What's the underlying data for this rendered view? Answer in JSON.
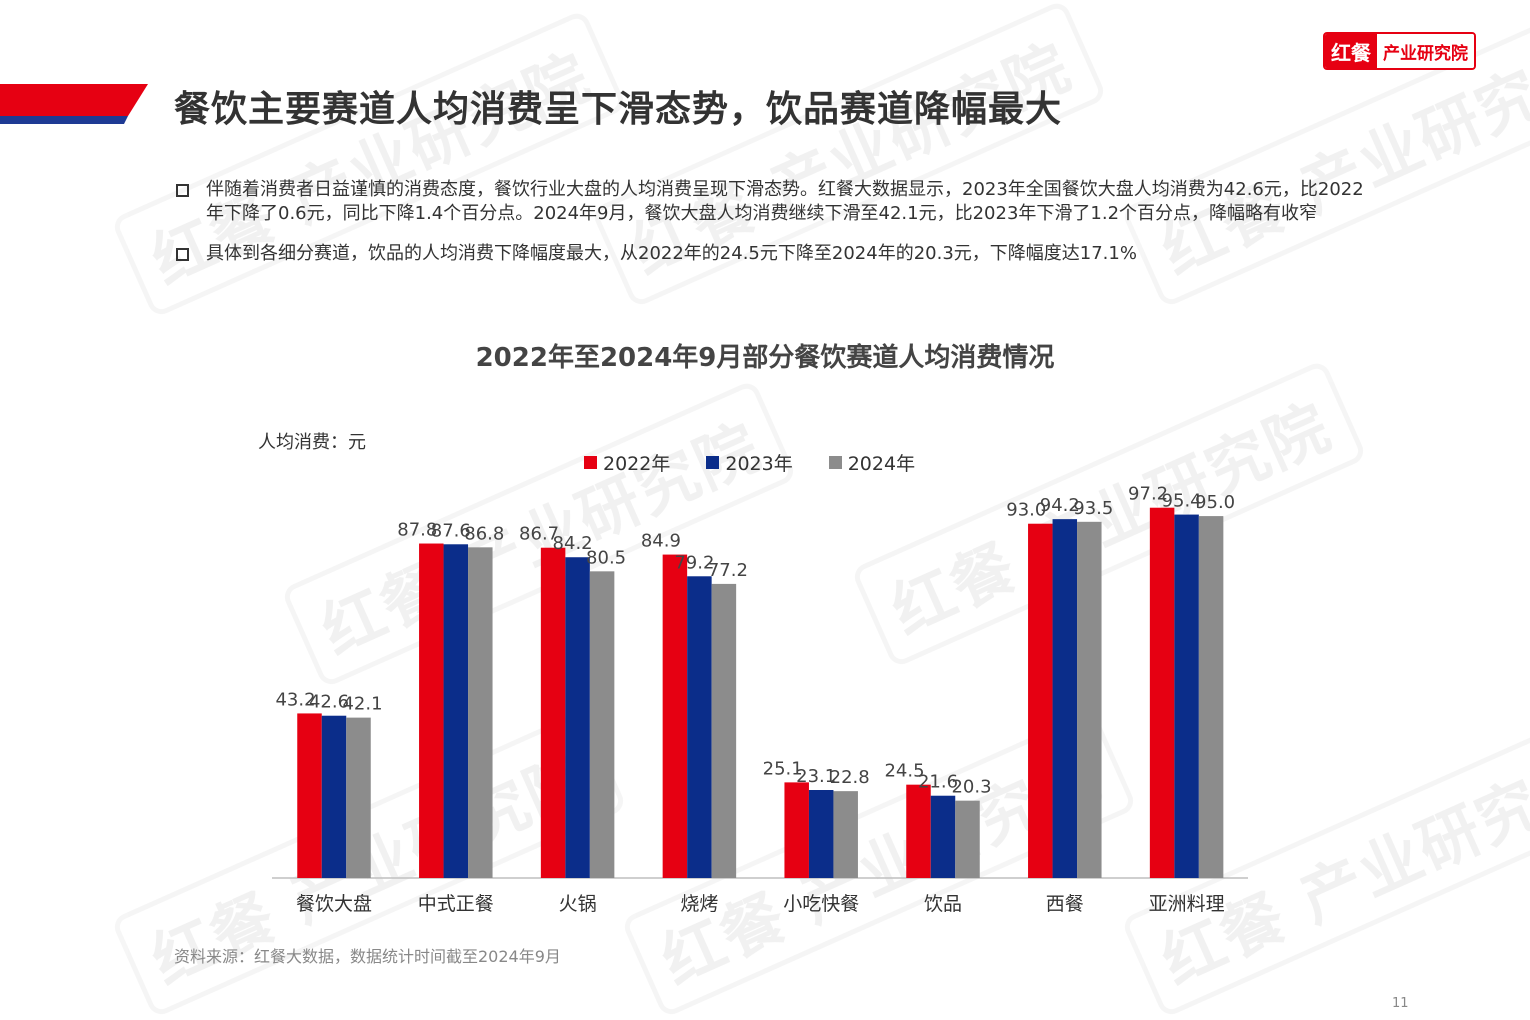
{
  "logo": {
    "brand": "红餐",
    "text": "产业研究院"
  },
  "watermark": "红餐 产业研究院",
  "title": "餐饮主要赛道人均消费呈下滑态势，饮品赛道降幅最大",
  "bullets": [
    "伴随着消费者日益谨慎的消费态度，餐饮行业大盘的人均消费呈现下滑态势。红餐大数据显示，2023年全国餐饮大盘人均消费为42.6元，比2022年下降了0.6元，同比下降1.4个百分点。2024年9月，餐饮大盘人均消费继续下滑至42.1元，比2023年下滑了1.2个百分点，降幅略有收窄",
    "具体到各细分赛道，饮品的人均消费下降幅度最大，从2022年的24.5元下降至2024年的20.3元，下降幅度达17.1%"
  ],
  "colors": {
    "accent": "#e60012",
    "navy": "#0b2d8a",
    "gray": "#8c8c8c"
  },
  "chart_data": {
    "type": "bar",
    "title": "2022年至2024年9月部分餐饮赛道人均消费情况",
    "ylabel": "人均消费：元",
    "xlabel": "",
    "ylim": [
      0,
      105
    ],
    "grid": false,
    "legend_position": "top",
    "categories": [
      "餐饮大盘",
      "中式正餐",
      "火锅",
      "烧烤",
      "小吃快餐",
      "饮品",
      "西餐",
      "亚洲料理"
    ],
    "series": [
      {
        "name": "2022年",
        "color": "#e60012",
        "values": [
          43.2,
          87.8,
          86.7,
          84.9,
          25.1,
          24.5,
          93.0,
          97.2
        ],
        "labels": [
          "43.2",
          "87.8",
          "86.7",
          "84.9",
          "25.1",
          "24.5",
          "93.0",
          "97.2"
        ]
      },
      {
        "name": "2023年",
        "color": "#0b2d8a",
        "values": [
          42.6,
          87.6,
          84.2,
          79.2,
          23.1,
          21.6,
          94.2,
          95.4
        ],
        "labels": [
          "42.6",
          "87.6",
          "84.2",
          "79.2",
          "23.1",
          "21.6",
          "94.2",
          "95.4"
        ]
      },
      {
        "name": "2024年",
        "color": "#8c8c8c",
        "values": [
          42.1,
          86.8,
          80.5,
          77.2,
          22.8,
          20.3,
          93.5,
          95.0
        ],
        "labels": [
          "42.1",
          "86.8",
          "80.5",
          "77.2",
          "22.8",
          "20.3",
          "93.5",
          "95.0"
        ]
      }
    ]
  },
  "source": "资料来源：红餐大数据，数据统计时间截至2024年9月",
  "page_number": "11"
}
